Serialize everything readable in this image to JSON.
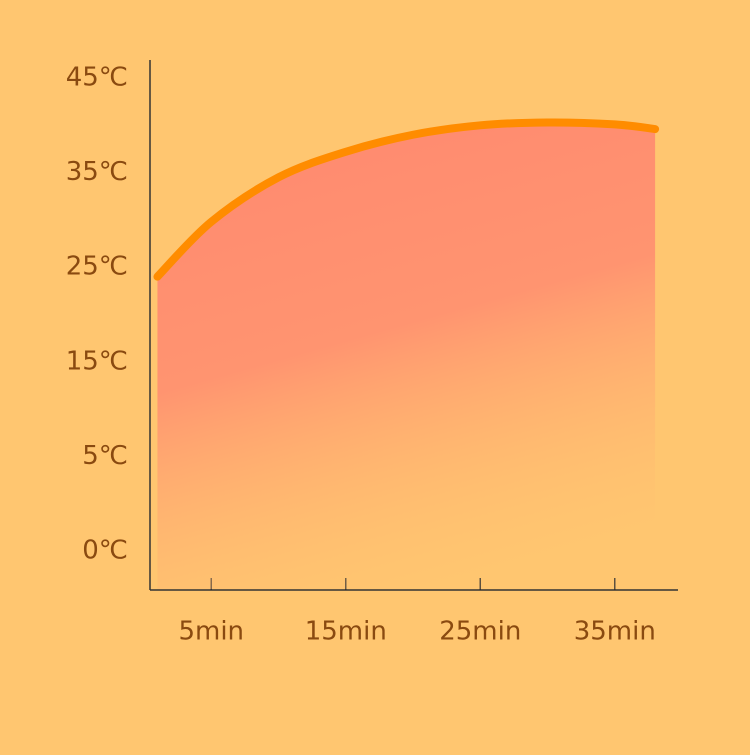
{
  "chart_data": {
    "type": "area",
    "x": [
      1,
      5,
      10,
      15,
      20,
      25,
      30,
      35,
      38
    ],
    "values": [
      24,
      29.8,
      34.5,
      37.2,
      39,
      40,
      40.3,
      40.1,
      39.6
    ],
    "color": "#ff8c00",
    "xlim": [
      0,
      40
    ],
    "xticks": [
      {
        "value": 5,
        "label": "5min"
      },
      {
        "value": 15,
        "label": "15min"
      },
      {
        "value": 25,
        "label": "25min"
      },
      {
        "value": 35,
        "label": "35min"
      }
    ],
    "ylim": [
      0,
      45
    ],
    "yticks": [
      {
        "value": 0,
        "label": "0℃"
      },
      {
        "value": 5,
        "label": "5℃"
      },
      {
        "value": 15,
        "label": "15℃"
      },
      {
        "value": 25,
        "label": "25℃"
      },
      {
        "value": 35,
        "label": "35℃"
      },
      {
        "value": 45,
        "label": "45℃"
      }
    ]
  }
}
